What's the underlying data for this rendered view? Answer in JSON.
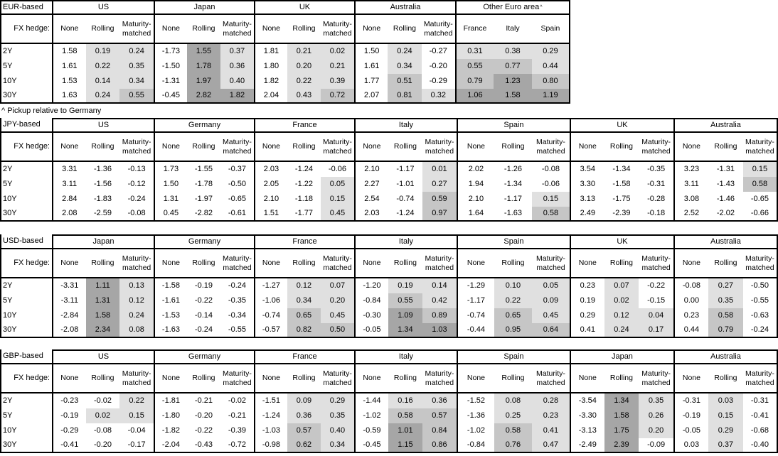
{
  "footnote": "^ Pickup relative to Germany",
  "hedge_label": "FX hedge:",
  "col_headers": [
    "None",
    "Rolling",
    "Maturity-matched"
  ],
  "tenors": [
    "2Y",
    "5Y",
    "10Y",
    "30Y"
  ],
  "shade_colors": {
    "light": "#e0e0e0",
    "medium": "#c6c6c6",
    "dark": "#a6a6a6"
  },
  "shade_rule": "shaded columns only: value < 0 none, 0-0.5 light, 0.5-1.0 medium, >= 1.0 dark",
  "tables": [
    {
      "base": "EUR-based",
      "groups": [
        {
          "name": "US",
          "shaded": [
            false,
            true,
            true
          ],
          "rows": [
            [
              "1.58",
              "0.19",
              "0.24"
            ],
            [
              "1.61",
              "0.22",
              "0.35"
            ],
            [
              "1.53",
              "0.14",
              "0.34"
            ],
            [
              "1.63",
              "0.24",
              "0.55"
            ]
          ]
        },
        {
          "name": "Japan",
          "shaded": [
            false,
            true,
            true
          ],
          "rows": [
            [
              "-1.73",
              "1.55",
              "0.37"
            ],
            [
              "-1.50",
              "1.78",
              "0.36"
            ],
            [
              "-1.31",
              "1.97",
              "0.40"
            ],
            [
              "-0.45",
              "2.82",
              "1.82"
            ]
          ]
        },
        {
          "name": "UK",
          "shaded": [
            false,
            true,
            true
          ],
          "rows": [
            [
              "1.81",
              "0.21",
              "0.02"
            ],
            [
              "1.80",
              "0.20",
              "0.21"
            ],
            [
              "1.82",
              "0.22",
              "0.39"
            ],
            [
              "2.04",
              "0.43",
              "0.72"
            ]
          ]
        },
        {
          "name": "Australia",
          "shaded": [
            false,
            true,
            true
          ],
          "rows": [
            [
              "1.50",
              "0.24",
              "-0.27"
            ],
            [
              "1.61",
              "0.34",
              "-0.20"
            ],
            [
              "1.77",
              "0.51",
              "-0.29"
            ],
            [
              "2.07",
              "0.81",
              "0.32"
            ]
          ]
        },
        {
          "name": "Other Euro area",
          "sup": "^",
          "cols": [
            "France",
            "Italy",
            "Spain"
          ],
          "shaded": [
            true,
            true,
            true
          ],
          "rows": [
            [
              "0.31",
              "0.38",
              "0.29"
            ],
            [
              "0.55",
              "0.77",
              "0.44"
            ],
            [
              "0.79",
              "1.23",
              "0.80"
            ],
            [
              "1.06",
              "1.58",
              "1.19"
            ]
          ]
        }
      ]
    },
    {
      "base": "JPY-based",
      "groups": [
        {
          "name": "US",
          "shaded": [
            false,
            true,
            true
          ],
          "rows": [
            [
              "3.31",
              "-1.36",
              "-0.13"
            ],
            [
              "3.11",
              "-1.56",
              "-0.12"
            ],
            [
              "2.84",
              "-1.83",
              "-0.24"
            ],
            [
              "2.08",
              "-2.59",
              "-0.08"
            ]
          ]
        },
        {
          "name": "Germany",
          "shaded": [
            false,
            true,
            true
          ],
          "rows": [
            [
              "1.73",
              "-1.55",
              "-0.37"
            ],
            [
              "1.50",
              "-1.78",
              "-0.50"
            ],
            [
              "1.31",
              "-1.97",
              "-0.65"
            ],
            [
              "0.45",
              "-2.82",
              "-0.61"
            ]
          ]
        },
        {
          "name": "France",
          "shaded": [
            false,
            true,
            true
          ],
          "rows": [
            [
              "2.03",
              "-1.24",
              "-0.06"
            ],
            [
              "2.05",
              "-1.22",
              "0.05"
            ],
            [
              "2.10",
              "-1.18",
              "0.15"
            ],
            [
              "1.51",
              "-1.77",
              "0.45"
            ]
          ]
        },
        {
          "name": "Italy",
          "shaded": [
            false,
            true,
            true
          ],
          "rows": [
            [
              "2.10",
              "-1.17",
              "0.01"
            ],
            [
              "2.27",
              "-1.01",
              "0.27"
            ],
            [
              "2.54",
              "-0.74",
              "0.59"
            ],
            [
              "2.03",
              "-1.24",
              "0.97"
            ]
          ]
        },
        {
          "name": "Spain",
          "shaded": [
            false,
            true,
            true
          ],
          "rows": [
            [
              "2.02",
              "-1.26",
              "-0.08"
            ],
            [
              "1.94",
              "-1.34",
              "-0.06"
            ],
            [
              "2.10",
              "-1.17",
              "0.15"
            ],
            [
              "1.64",
              "-1.63",
              "0.58"
            ]
          ]
        },
        {
          "name": "UK",
          "shaded": [
            false,
            true,
            true
          ],
          "rows": [
            [
              "3.54",
              "-1.34",
              "-0.35"
            ],
            [
              "3.30",
              "-1.58",
              "-0.31"
            ],
            [
              "3.13",
              "-1.75",
              "-0.28"
            ],
            [
              "2.49",
              "-2.39",
              "-0.18"
            ]
          ]
        },
        {
          "name": "Australia",
          "shaded": [
            false,
            true,
            true
          ],
          "rows": [
            [
              "3.23",
              "-1.31",
              "0.15"
            ],
            [
              "3.11",
              "-1.43",
              "0.58"
            ],
            [
              "3.08",
              "-1.46",
              "-0.65"
            ],
            [
              "2.52",
              "-2.02",
              "-0.66"
            ]
          ]
        }
      ]
    },
    {
      "base": "USD-based",
      "groups": [
        {
          "name": "Japan",
          "shaded": [
            false,
            true,
            true
          ],
          "rows": [
            [
              "-3.31",
              "1.11",
              "0.13"
            ],
            [
              "-3.11",
              "1.31",
              "0.12"
            ],
            [
              "-2.84",
              "1.58",
              "0.24"
            ],
            [
              "-2.08",
              "2.34",
              "0.08"
            ]
          ]
        },
        {
          "name": "Germany",
          "shaded": [
            false,
            true,
            true
          ],
          "rows": [
            [
              "-1.58",
              "-0.19",
              "-0.24"
            ],
            [
              "-1.61",
              "-0.22",
              "-0.35"
            ],
            [
              "-1.53",
              "-0.14",
              "-0.34"
            ],
            [
              "-1.63",
              "-0.24",
              "-0.55"
            ]
          ]
        },
        {
          "name": "France",
          "shaded": [
            false,
            true,
            true
          ],
          "rows": [
            [
              "-1.27",
              "0.12",
              "0.07"
            ],
            [
              "-1.06",
              "0.34",
              "0.20"
            ],
            [
              "-0.74",
              "0.65",
              "0.45"
            ],
            [
              "-0.57",
              "0.82",
              "0.50"
            ]
          ]
        },
        {
          "name": "Italy",
          "shaded": [
            false,
            true,
            true
          ],
          "rows": [
            [
              "-1.20",
              "0.19",
              "0.14"
            ],
            [
              "-0.84",
              "0.55",
              "0.42"
            ],
            [
              "-0.30",
              "1.09",
              "0.89"
            ],
            [
              "-0.05",
              "1.34",
              "1.03"
            ]
          ]
        },
        {
          "name": "Spain",
          "shaded": [
            false,
            true,
            true
          ],
          "rows": [
            [
              "-1.29",
              "0.10",
              "0.05"
            ],
            [
              "-1.17",
              "0.22",
              "0.09"
            ],
            [
              "-0.74",
              "0.65",
              "0.45"
            ],
            [
              "-0.44",
              "0.95",
              "0.64"
            ]
          ]
        },
        {
          "name": "UK",
          "shaded": [
            false,
            true,
            true
          ],
          "rows": [
            [
              "0.23",
              "0.07",
              "-0.22"
            ],
            [
              "0.19",
              "0.02",
              "-0.15"
            ],
            [
              "0.29",
              "0.12",
              "0.04"
            ],
            [
              "0.41",
              "0.24",
              "0.17"
            ]
          ]
        },
        {
          "name": "Australia",
          "shaded": [
            false,
            true,
            true
          ],
          "rows": [
            [
              "-0.08",
              "0.27",
              "-0.50"
            ],
            [
              "0.00",
              "0.35",
              "-0.55"
            ],
            [
              "0.23",
              "0.58",
              "-0.63"
            ],
            [
              "0.44",
              "0.79",
              "-0.24"
            ]
          ]
        }
      ]
    },
    {
      "base": "GBP-based",
      "groups": [
        {
          "name": "US",
          "shaded": [
            false,
            true,
            true
          ],
          "rows": [
            [
              "-0.23",
              "-0.02",
              "0.22"
            ],
            [
              "-0.19",
              "0.02",
              "0.15"
            ],
            [
              "-0.29",
              "-0.08",
              "-0.04"
            ],
            [
              "-0.41",
              "-0.20",
              "-0.17"
            ]
          ]
        },
        {
          "name": "Germany",
          "shaded": [
            false,
            true,
            true
          ],
          "rows": [
            [
              "-1.81",
              "-0.21",
              "-0.02"
            ],
            [
              "-1.80",
              "-0.20",
              "-0.21"
            ],
            [
              "-1.82",
              "-0.22",
              "-0.39"
            ],
            [
              "-2.04",
              "-0.43",
              "-0.72"
            ]
          ]
        },
        {
          "name": "France",
          "shaded": [
            false,
            true,
            true
          ],
          "rows": [
            [
              "-1.51",
              "0.09",
              "0.29"
            ],
            [
              "-1.24",
              "0.36",
              "0.35"
            ],
            [
              "-1.03",
              "0.57",
              "0.40"
            ],
            [
              "-0.98",
              "0.62",
              "0.34"
            ]
          ]
        },
        {
          "name": "Italy",
          "shaded": [
            false,
            true,
            true
          ],
          "rows": [
            [
              "-1.44",
              "0.16",
              "0.36"
            ],
            [
              "-1.02",
              "0.58",
              "0.57"
            ],
            [
              "-0.59",
              "1.01",
              "0.84"
            ],
            [
              "-0.45",
              "1.15",
              "0.86"
            ]
          ]
        },
        {
          "name": "Spain",
          "shaded": [
            false,
            true,
            true
          ],
          "rows": [
            [
              "-1.52",
              "0.08",
              "0.28"
            ],
            [
              "-1.36",
              "0.25",
              "0.23"
            ],
            [
              "-1.02",
              "0.58",
              "0.41"
            ],
            [
              "-0.84",
              "0.76",
              "0.47"
            ]
          ]
        },
        {
          "name": "Japan",
          "shaded": [
            false,
            true,
            true
          ],
          "rows": [
            [
              "-3.54",
              "1.34",
              "0.35"
            ],
            [
              "-3.30",
              "1.58",
              "0.26"
            ],
            [
              "-3.13",
              "1.75",
              "0.20"
            ],
            [
              "-2.49",
              "2.39",
              "-0.09"
            ]
          ]
        },
        {
          "name": "Australia",
          "shaded": [
            false,
            true,
            true
          ],
          "rows": [
            [
              "-0.31",
              "0.03",
              "-0.31"
            ],
            [
              "-0.19",
              "0.15",
              "-0.41"
            ],
            [
              "-0.05",
              "0.29",
              "-0.68"
            ],
            [
              "0.03",
              "0.37",
              "-0.40"
            ]
          ]
        }
      ]
    }
  ]
}
